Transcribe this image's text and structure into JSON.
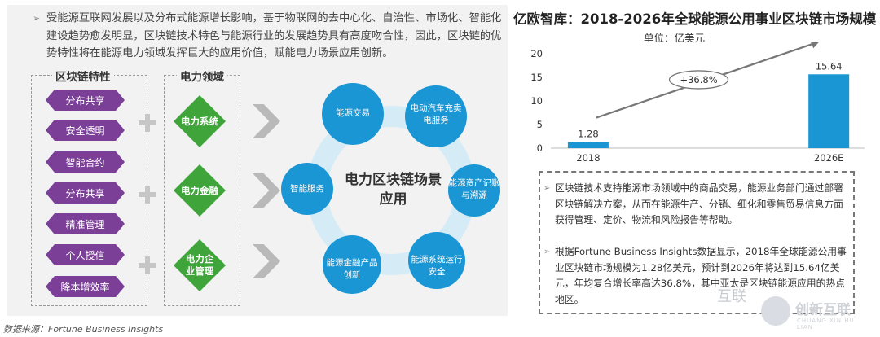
{
  "intro": {
    "text": "受能源互联网发展以及分布式能源增长影响，基于物联网的去中心化、自治性、市场化、智能化建设趋势愈发明显，区块链技术特色与能源行业的发展趋势具有高度吻合性，因此，区块链的优势特性将在能源电力领域发挥巨大的应用价值，赋能电力场景应用创新。"
  },
  "features": {
    "title": "区块链特性",
    "items": [
      "分布共享",
      "安全透明",
      "智能合约",
      "分布共享",
      "精准管理",
      "个人授信",
      "降本增效率"
    ]
  },
  "power_fields": {
    "title": "电力领域",
    "items": [
      "电力系统",
      "电力金融",
      "电力企业管理"
    ]
  },
  "hub": {
    "title": "电力区块链场景应用",
    "nodes": [
      "能源交易",
      "电动汽车充卖电服务",
      "能源资产记账与溯源",
      "能源系统运行安全",
      "能源金融产品创新",
      "智能服务"
    ]
  },
  "colors": {
    "feature": "#7b3f98",
    "field": "#3fa53a",
    "hub_node": "#1a96d4",
    "hub_ring": "#d5ecf7",
    "bar": "#1a96d4"
  },
  "chart_data": {
    "type": "bar",
    "title": "亿欧智库：2018-2026年全球能源公用事业区块链市场规模",
    "unit": "单位：亿美元",
    "categories": [
      "2018",
      "2026E"
    ],
    "values": [
      1.28,
      15.64
    ],
    "value_labels": [
      "1.28",
      "15.64"
    ],
    "ylim": [
      0,
      20
    ],
    "yticks": [
      0,
      5,
      10,
      15,
      20
    ],
    "grid": false,
    "annotation": "+36.8%"
  },
  "notes": [
    "区块链技术支持能源市场领域中的商品交易，能源业务部门通过部署区块链解决方案，从而在能源生产、分销、细化和零售贸易信息方面获得管理、定价、物流和风险报告等帮助。",
    "根据Fortune Business Insights数据显示，2018年全球能源公用事业区块链市场规模为1.28亿美元，预计到2026年将达到15.64亿美元，年均复合增长率高达36.8%，其中亚太是区块链能源应用的热点地区。"
  ],
  "source": "数据来源：Fortune Business Insights",
  "watermark": {
    "brand": "创新互联",
    "pinyin": "CHUANG XIN HU LIAN",
    "overlay": "互联"
  }
}
